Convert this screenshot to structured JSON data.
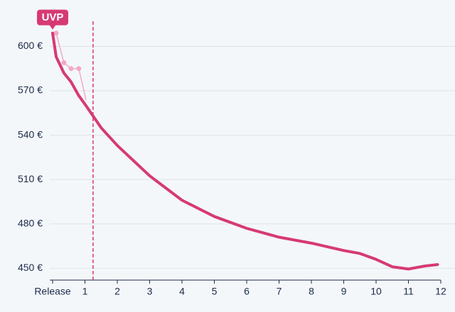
{
  "chart_data": {
    "type": "line",
    "x": [
      0,
      0.11,
      0.35,
      0.57,
      0.8,
      1.03,
      1.5,
      2,
      3,
      4,
      5,
      6,
      7,
      8,
      9,
      9.5,
      10,
      10.5,
      11,
      11.5,
      11.9
    ],
    "series": [
      {
        "color": "#d63a73",
        "values": [
          609,
          593,
          582,
          576,
          567,
          560,
          545,
          533,
          512.5,
          496,
          485,
          477,
          471,
          467,
          462,
          460,
          456,
          451,
          449.5,
          451.5,
          452.5
        ]
      },
      {
        "color": "#f2a9c7",
        "x": [
          0.11,
          0.35,
          0.57,
          0.81,
          1.03
        ],
        "values": [
          609,
          589,
          585,
          585,
          564
        ]
      }
    ],
    "xlim": [
      0,
      12
    ],
    "xticks": [
      {
        "value": 0,
        "label": "Release"
      },
      1,
      2,
      3,
      4,
      5,
      6,
      7,
      8,
      9,
      10,
      11,
      12
    ],
    "ylim": [
      442,
      617
    ],
    "yticks": [
      {
        "value": 450,
        "label": "450 €"
      },
      {
        "value": 480,
        "label": "480 €"
      },
      {
        "value": 510,
        "label": "510 €"
      },
      {
        "value": 540,
        "label": "540 €"
      },
      {
        "value": 570,
        "label": "570 €"
      },
      {
        "value": 600,
        "label": "600 €"
      }
    ],
    "grid": true,
    "reference_line": {
      "x": 1.25,
      "color": "#d63a73"
    },
    "annotations": [
      {
        "text": "UVP",
        "x": 0,
        "y": 609
      }
    ]
  }
}
